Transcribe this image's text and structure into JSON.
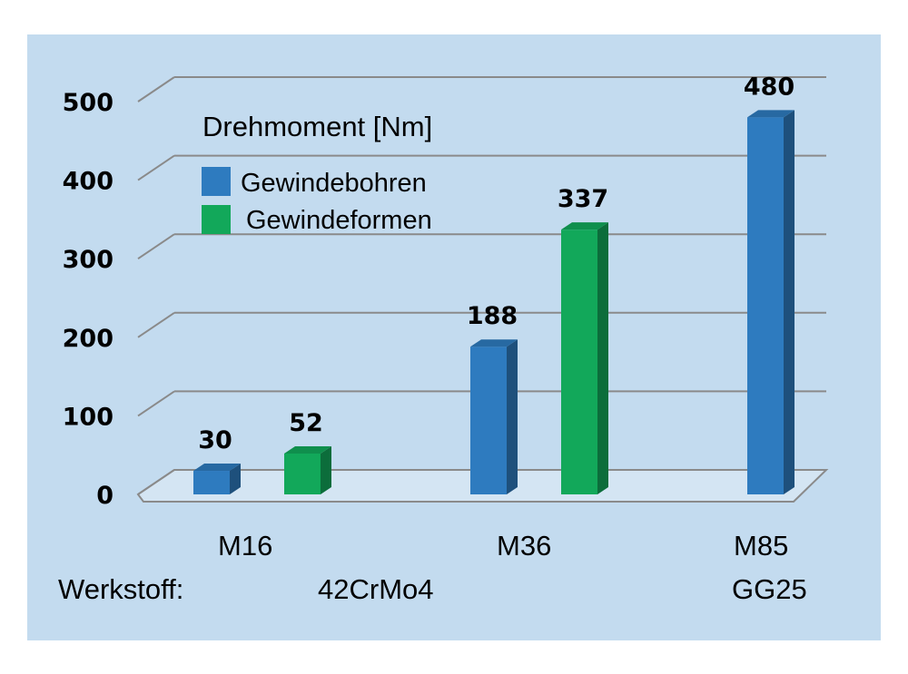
{
  "chart_data": {
    "type": "bar",
    "title": "Drehmoment  [Nm]",
    "categories": [
      "M16",
      "M36",
      "M85"
    ],
    "series": [
      {
        "name": "Gewindebohren",
        "color": "#2e7bbf",
        "values": [
          30,
          188,
          480
        ]
      },
      {
        "name": "Gewindeformen",
        "color": "#12a85a",
        "values": [
          52,
          337,
          null
        ]
      }
    ],
    "ylim": [
      0,
      500
    ],
    "yticks": [
      "0",
      "100",
      "200",
      "300",
      "400",
      "500"
    ],
    "data_labels": [
      "30",
      "188",
      "480",
      "52",
      "337"
    ],
    "grid": true,
    "legend_position": "top-left"
  },
  "material": {
    "label": "Werkstoff:",
    "groups": [
      "42CrMo4",
      "GG25"
    ]
  },
  "colors": {
    "background": "#c3dbef",
    "gridline": "#8a8a8a"
  }
}
